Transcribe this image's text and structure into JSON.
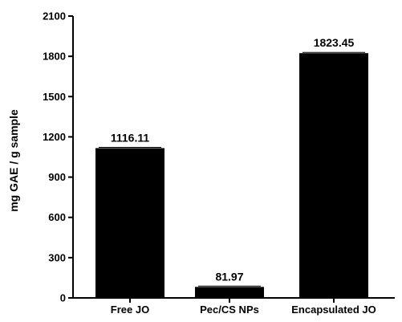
{
  "chart_data": {
    "type": "bar",
    "categories": [
      "Free JO",
      "Pec/CS NPs",
      "Encapsulated JO"
    ],
    "values": [
      1116.11,
      81.97,
      1823.45
    ],
    "data_labels": [
      "1116.11",
      "81.97",
      "1823.45"
    ],
    "xlabel": "",
    "ylabel": "mg GAE / g sample",
    "ylim": [
      0,
      2100
    ],
    "yticks": [
      0,
      300,
      600,
      900,
      1200,
      1500,
      1800,
      2100
    ],
    "grid": false,
    "legend": "none",
    "bar_color": "#000000"
  }
}
